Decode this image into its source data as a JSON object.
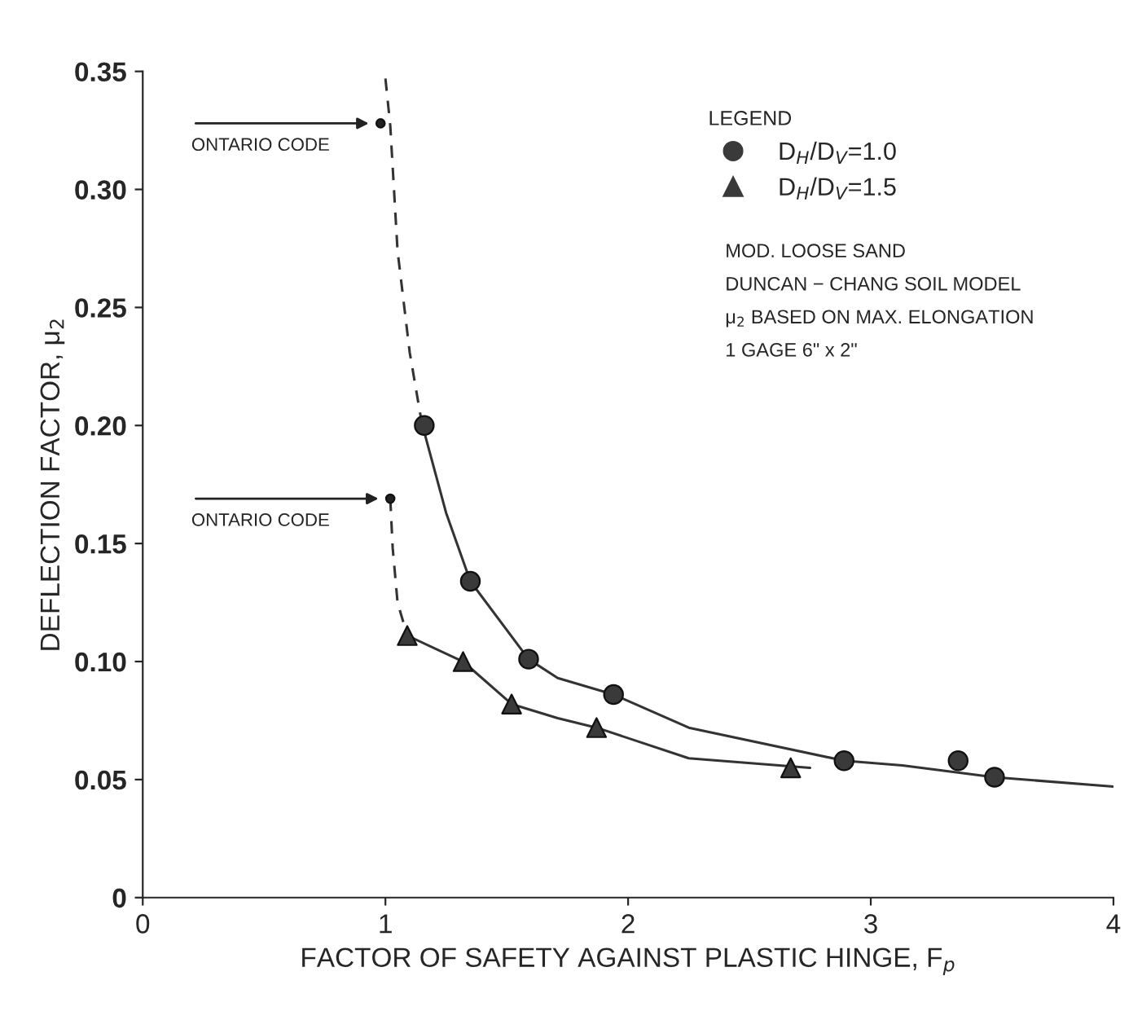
{
  "chart_data": {
    "type": "scatter",
    "xlabel": "FACTOR OF SAFETY AGAINST PLASTIC HINGE, F$_{p}$",
    "ylabel": "DEFLECTION FACTOR, μ$_{2}$",
    "legend_title": "LEGEND",
    "legend": "top right",
    "grid": false,
    "xlim": [
      0,
      4
    ],
    "ylim": [
      0,
      0.35
    ],
    "xticks": [
      0,
      1,
      2,
      3,
      4
    ],
    "yticks": [
      0,
      {
        "value": 0.05,
        "label": "0.05"
      },
      {
        "value": 0.1,
        "label": "0.10"
      },
      {
        "value": 0.15,
        "label": "0.15"
      },
      {
        "value": 0.2,
        "label": "0.20"
      },
      {
        "value": 0.25,
        "label": "0.25"
      },
      {
        "value": 0.3,
        "label": "0.30"
      },
      {
        "value": 0.35,
        "label": "0.35"
      }
    ],
    "series": [
      {
        "name": "D$_{H}$/D$_{V}$=1.0",
        "marker": "circle",
        "color": "#3a3a3a",
        "x": [
          1.16,
          1.35,
          1.59,
          1.94,
          2.89,
          3.36,
          3.51
        ],
        "values": [
          0.2,
          0.134,
          0.101,
          0.086,
          0.058,
          0.058,
          0.051
        ]
      },
      {
        "name": "D$_{H}$/D$_{V}$=1.5",
        "marker": "triangle",
        "color": "#3a3a3a",
        "x": [
          1.09,
          1.32,
          1.52,
          1.87,
          2.67
        ],
        "values": [
          0.111,
          0.1,
          0.082,
          0.072,
          0.055
        ]
      },
      {
        "marker": "circle",
        "color": "#222222",
        "x": [
          0.98,
          1.02
        ],
        "values": [
          0.328,
          0.169
        ]
      },
      {
        "type": "line",
        "line_style": "dashed",
        "marker": "none",
        "color": "#333333",
        "x": [
          1.0,
          1.02,
          1.05,
          1.1,
          1.15
        ],
        "values": [
          0.347,
          0.327,
          0.274,
          0.231,
          0.201
        ]
      },
      {
        "type": "line",
        "line_style": "solid",
        "marker": "none",
        "color": "#333333",
        "x": [
          1.15,
          1.25,
          1.35,
          1.59,
          1.71,
          1.94,
          2.25,
          2.89,
          3.13,
          3.51,
          4.0
        ],
        "values": [
          0.201,
          0.163,
          0.134,
          0.101,
          0.093,
          0.086,
          0.072,
          0.058,
          0.056,
          0.051,
          0.047
        ]
      },
      {
        "type": "line",
        "line_style": "dashed",
        "marker": "none",
        "color": "#333333",
        "x": [
          1.02,
          1.03,
          1.05,
          1.09
        ],
        "values": [
          0.169,
          0.148,
          0.125,
          0.111
        ]
      },
      {
        "type": "line",
        "line_style": "solid",
        "marker": "none",
        "color": "#333333",
        "x": [
          1.09,
          1.32,
          1.52,
          1.71,
          1.87,
          2.25,
          2.75
        ],
        "values": [
          0.111,
          0.1,
          0.082,
          0.076,
          0.072,
          0.059,
          0.055
        ]
      }
    ],
    "annotations": [
      {
        "text": "ONTARIO CODE",
        "x": 0.98,
        "y": 0.328
      },
      {
        "text": "ONTARIO CODE",
        "x": 1.02,
        "y": 0.169
      },
      "MOD. LOOSE SAND",
      "DUNCAN − CHANG SOIL MODEL",
      "μ$_{2}$ BASED ON MAX. ELONGATION",
      "1 GAGE 6\" x 2\""
    ]
  }
}
